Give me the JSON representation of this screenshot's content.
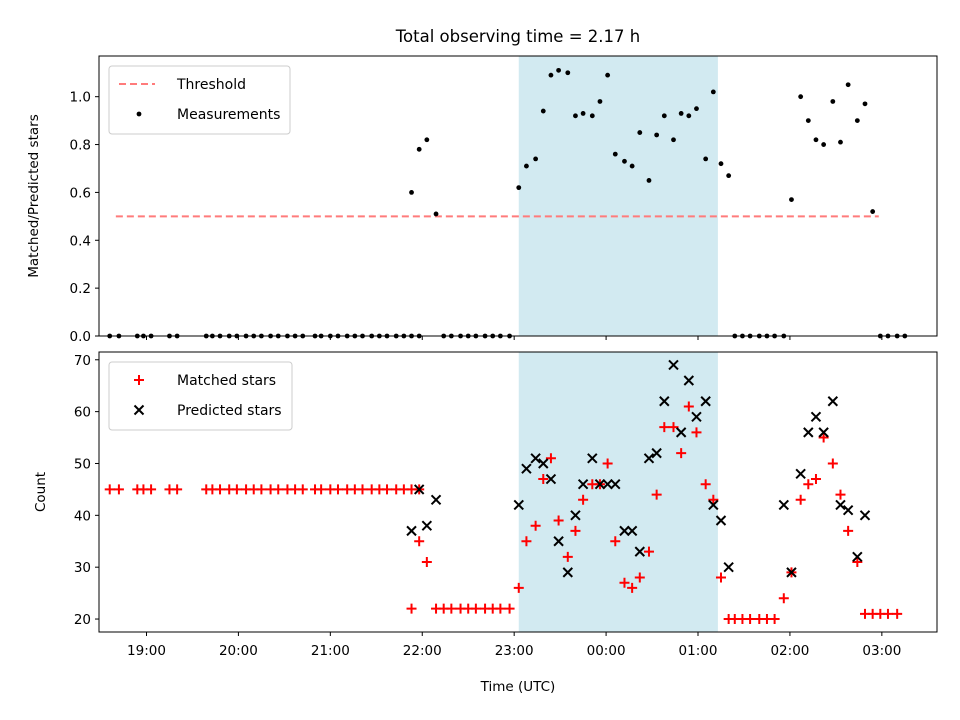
{
  "chart_data": {
    "title": "Total observing time = 2.17 h",
    "xlabel": "Time (UTC)",
    "x_ticks": [
      "19:00",
      "20:00",
      "21:00",
      "22:00",
      "23:00",
      "00:00",
      "01:00",
      "02:00",
      "03:00"
    ],
    "observing_window": {
      "start": "23:03",
      "end": "01:13",
      "color": "#add8e6"
    },
    "panels": [
      {
        "type": "scatter",
        "ylabel": "Matched/Predicted stars",
        "ylim": [
          0,
          1.17
        ],
        "yticks": [
          "0.0",
          "0.2",
          "0.4",
          "0.6",
          "0.8",
          "1.0"
        ],
        "legend_position": "top-left",
        "threshold": {
          "name": "Threshold",
          "value": 0.5,
          "x_range": [
            "18:40",
            "02:58"
          ],
          "color": "#ff7b7b"
        },
        "series": [
          {
            "name": "Measurements",
            "marker": "dot",
            "color": "#000000",
            "points": [
              [
                "18:36",
                0
              ],
              [
                "18:42",
                0
              ],
              [
                "18:54",
                0
              ],
              [
                "18:58",
                0
              ],
              [
                "19:03",
                0
              ],
              [
                "19:15",
                0
              ],
              [
                "19:20",
                0
              ],
              [
                "19:39",
                0
              ],
              [
                "19:43",
                0
              ],
              [
                "19:48",
                0
              ],
              [
                "19:54",
                0
              ],
              [
                "19:59",
                0
              ],
              [
                "20:05",
                0
              ],
              [
                "20:10",
                0
              ],
              [
                "20:15",
                0
              ],
              [
                "20:21",
                0
              ],
              [
                "20:26",
                0
              ],
              [
                "20:32",
                0
              ],
              [
                "20:37",
                0
              ],
              [
                "20:42",
                0
              ],
              [
                "20:50",
                0
              ],
              [
                "20:54",
                0
              ],
              [
                "21:00",
                0
              ],
              [
                "21:05",
                0
              ],
              [
                "21:11",
                0
              ],
              [
                "21:16",
                0
              ],
              [
                "21:21",
                0
              ],
              [
                "21:27",
                0
              ],
              [
                "21:32",
                0
              ],
              [
                "21:37",
                0
              ],
              [
                "21:43",
                0
              ],
              [
                "21:48",
                0
              ],
              [
                "21:53",
                0
              ],
              [
                "21:58",
                0
              ],
              [
                "21:53",
                0.6
              ],
              [
                "21:58",
                0.78
              ],
              [
                "22:03",
                0.82
              ],
              [
                "22:09",
                0.51
              ],
              [
                "22:14",
                0
              ],
              [
                "22:19",
                0
              ],
              [
                "22:25",
                0
              ],
              [
                "22:30",
                0
              ],
              [
                "22:35",
                0
              ],
              [
                "22:41",
                0
              ],
              [
                "22:46",
                0
              ],
              [
                "22:51",
                0
              ],
              [
                "22:57",
                0
              ],
              [
                "23:03",
                0.62
              ],
              [
                "23:08",
                0.71
              ],
              [
                "23:14",
                0.74
              ],
              [
                "23:19",
                0.94
              ],
              [
                "23:24",
                1.09
              ],
              [
                "23:29",
                1.11
              ],
              [
                "23:35",
                1.1
              ],
              [
                "23:40",
                0.92
              ],
              [
                "23:45",
                0.93
              ],
              [
                "23:51",
                0.92
              ],
              [
                "23:56",
                0.98
              ],
              [
                "00:01",
                1.09
              ],
              [
                "00:06",
                0.76
              ],
              [
                "00:12",
                0.73
              ],
              [
                "00:17",
                0.71
              ],
              [
                "00:22",
                0.85
              ],
              [
                "00:28",
                0.65
              ],
              [
                "00:33",
                0.84
              ],
              [
                "00:38",
                0.92
              ],
              [
                "00:44",
                0.82
              ],
              [
                "00:49",
                0.93
              ],
              [
                "00:54",
                0.92
              ],
              [
                "00:59",
                0.95
              ],
              [
                "01:05",
                0.74
              ],
              [
                "01:10",
                1.02
              ],
              [
                "01:15",
                0.72
              ],
              [
                "01:20",
                0.67
              ],
              [
                "01:24",
                0
              ],
              [
                "01:29",
                0
              ],
              [
                "01:34",
                0
              ],
              [
                "01:40",
                0
              ],
              [
                "01:45",
                0
              ],
              [
                "01:50",
                0
              ],
              [
                "01:56",
                0
              ],
              [
                "02:01",
                0.57
              ],
              [
                "02:07",
                1
              ],
              [
                "02:12",
                0.9
              ],
              [
                "02:17",
                0.82
              ],
              [
                "02:22",
                0.8
              ],
              [
                "02:28",
                0.98
              ],
              [
                "02:33",
                0.81
              ],
              [
                "02:38",
                1.05
              ],
              [
                "02:44",
                0.9
              ],
              [
                "02:49",
                0.97
              ],
              [
                "02:54",
                0.52
              ],
              [
                "02:59",
                0
              ],
              [
                "03:04",
                0
              ],
              [
                "03:10",
                0
              ],
              [
                "03:15",
                0
              ]
            ]
          }
        ]
      },
      {
        "type": "scatter",
        "ylabel": "Count",
        "ylim": [
          17.5,
          71.5
        ],
        "yticks": [
          "20",
          "30",
          "40",
          "50",
          "60",
          "70"
        ],
        "legend_position": "top-left",
        "series": [
          {
            "name": "Matched stars",
            "marker": "plus",
            "color": "#ff0000",
            "points": [
              [
                "18:36",
                45
              ],
              [
                "18:42",
                45
              ],
              [
                "18:54",
                45
              ],
              [
                "18:58",
                45
              ],
              [
                "19:03",
                45
              ],
              [
                "19:15",
                45
              ],
              [
                "19:20",
                45
              ],
              [
                "19:39",
                45
              ],
              [
                "19:43",
                45
              ],
              [
                "19:48",
                45
              ],
              [
                "19:54",
                45
              ],
              [
                "19:59",
                45
              ],
              [
                "20:05",
                45
              ],
              [
                "20:10",
                45
              ],
              [
                "20:15",
                45
              ],
              [
                "20:21",
                45
              ],
              [
                "20:26",
                45
              ],
              [
                "20:32",
                45
              ],
              [
                "20:37",
                45
              ],
              [
                "20:42",
                45
              ],
              [
                "20:50",
                45
              ],
              [
                "20:54",
                45
              ],
              [
                "21:00",
                45
              ],
              [
                "21:05",
                45
              ],
              [
                "21:11",
                45
              ],
              [
                "21:16",
                45
              ],
              [
                "21:21",
                45
              ],
              [
                "21:27",
                45
              ],
              [
                "21:32",
                45
              ],
              [
                "21:37",
                45
              ],
              [
                "21:43",
                45
              ],
              [
                "21:48",
                45
              ],
              [
                "21:53",
                45
              ],
              [
                "21:58",
                45
              ],
              [
                "21:53",
                22
              ],
              [
                "21:58",
                35
              ],
              [
                "22:03",
                31
              ],
              [
                "22:09",
                22
              ],
              [
                "22:14",
                22
              ],
              [
                "22:19",
                22
              ],
              [
                "22:25",
                22
              ],
              [
                "22:30",
                22
              ],
              [
                "22:35",
                22
              ],
              [
                "22:41",
                22
              ],
              [
                "22:46",
                22
              ],
              [
                "22:51",
                22
              ],
              [
                "22:57",
                22
              ],
              [
                "23:03",
                26
              ],
              [
                "23:08",
                35
              ],
              [
                "23:14",
                38
              ],
              [
                "23:19",
                47
              ],
              [
                "23:24",
                51
              ],
              [
                "23:29",
                39
              ],
              [
                "23:35",
                32
              ],
              [
                "23:40",
                37
              ],
              [
                "23:45",
                43
              ],
              [
                "23:51",
                46
              ],
              [
                "23:56",
                46
              ],
              [
                "00:01",
                50
              ],
              [
                "00:06",
                35
              ],
              [
                "00:12",
                27
              ],
              [
                "00:17",
                26
              ],
              [
                "00:22",
                28
              ],
              [
                "00:28",
                33
              ],
              [
                "00:33",
                44
              ],
              [
                "00:38",
                57
              ],
              [
                "00:44",
                57
              ],
              [
                "00:49",
                52
              ],
              [
                "00:54",
                61
              ],
              [
                "00:59",
                56
              ],
              [
                "01:05",
                46
              ],
              [
                "01:10",
                43
              ],
              [
                "01:15",
                28
              ],
              [
                "01:20",
                20
              ],
              [
                "01:24",
                20
              ],
              [
                "01:29",
                20
              ],
              [
                "01:34",
                20
              ],
              [
                "01:40",
                20
              ],
              [
                "01:45",
                20
              ],
              [
                "01:50",
                20
              ],
              [
                "01:56",
                24
              ],
              [
                "02:01",
                29
              ],
              [
                "02:07",
                43
              ],
              [
                "02:12",
                46
              ],
              [
                "02:17",
                47
              ],
              [
                "02:22",
                55
              ],
              [
                "02:28",
                50
              ],
              [
                "02:33",
                44
              ],
              [
                "02:38",
                37
              ],
              [
                "02:44",
                31
              ],
              [
                "02:49",
                21
              ],
              [
                "02:54",
                21
              ],
              [
                "02:59",
                21
              ],
              [
                "03:04",
                21
              ],
              [
                "03:10",
                21
              ]
            ]
          },
          {
            "name": "Predicted stars",
            "marker": "x",
            "color": "#000000",
            "points": [
              [
                "21:53",
                37
              ],
              [
                "21:58",
                45
              ],
              [
                "22:03",
                38
              ],
              [
                "22:09",
                43
              ],
              [
                "23:03",
                42
              ],
              [
                "23:08",
                49
              ],
              [
                "23:14",
                51
              ],
              [
                "23:19",
                50
              ],
              [
                "23:24",
                47
              ],
              [
                "23:29",
                35
              ],
              [
                "23:35",
                29
              ],
              [
                "23:40",
                40
              ],
              [
                "23:45",
                46
              ],
              [
                "23:51",
                51
              ],
              [
                "23:56",
                46
              ],
              [
                "00:01",
                46
              ],
              [
                "00:06",
                46
              ],
              [
                "00:12",
                37
              ],
              [
                "00:17",
                37
              ],
              [
                "00:22",
                33
              ],
              [
                "00:28",
                51
              ],
              [
                "00:33",
                52
              ],
              [
                "00:38",
                62
              ],
              [
                "00:44",
                69
              ],
              [
                "00:49",
                56
              ],
              [
                "00:54",
                66
              ],
              [
                "00:59",
                59
              ],
              [
                "01:05",
                62
              ],
              [
                "01:10",
                42
              ],
              [
                "01:15",
                39
              ],
              [
                "01:20",
                30
              ],
              [
                "01:56",
                42
              ],
              [
                "02:01",
                29
              ],
              [
                "02:07",
                48
              ],
              [
                "02:12",
                56
              ],
              [
                "02:17",
                59
              ],
              [
                "02:22",
                56
              ],
              [
                "02:28",
                62
              ],
              [
                "02:33",
                42
              ],
              [
                "02:38",
                41
              ],
              [
                "02:44",
                32
              ],
              [
                "02:49",
                40
              ]
            ]
          }
        ]
      }
    ]
  }
}
